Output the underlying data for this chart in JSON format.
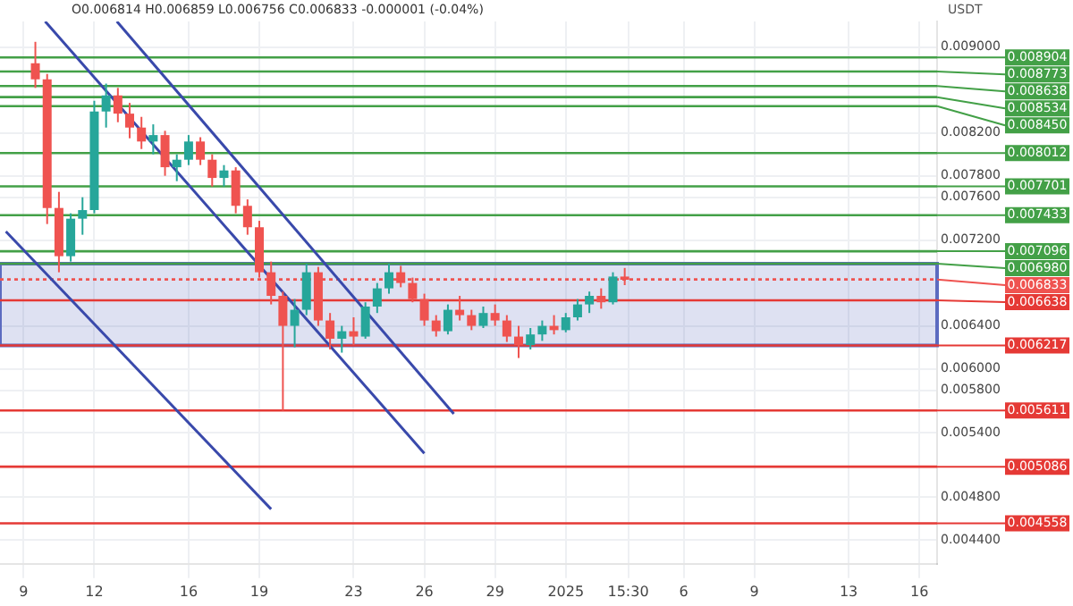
{
  "chart_data": {
    "type": "candlestick",
    "subtitle": "O0.006814 H0.006859 L0.006756 C0.006833 -0.000001 (-0.04%)",
    "ylabel": "USDT",
    "x": [
      "2024-12-09T12:00",
      "2024-12-10T00:00",
      "2024-12-10T12:00",
      "2024-12-11T00:00",
      "2024-12-11T12:00",
      "2024-12-12T00:00",
      "2024-12-12T12:00",
      "2024-12-13T00:00",
      "2024-12-13T12:00",
      "2024-12-14T00:00",
      "2024-12-14T12:00",
      "2024-12-15T00:00",
      "2024-12-15T12:00",
      "2024-12-16T00:00",
      "2024-12-16T12:00",
      "2024-12-17T00:00",
      "2024-12-17T12:00",
      "2024-12-18T00:00",
      "2024-12-18T12:00",
      "2024-12-19T00:00",
      "2024-12-19T12:00",
      "2024-12-20T00:00",
      "2024-12-20T12:00",
      "2024-12-21T00:00",
      "2024-12-21T12:00",
      "2024-12-22T00:00",
      "2024-12-22T12:00",
      "2024-12-23T00:00",
      "2024-12-23T12:00",
      "2024-12-24T00:00",
      "2024-12-24T12:00",
      "2024-12-25T00:00",
      "2024-12-25T12:00",
      "2024-12-26T00:00",
      "2024-12-26T12:00",
      "2024-12-27T00:00",
      "2024-12-27T12:00",
      "2024-12-28T00:00",
      "2024-12-28T12:00",
      "2024-12-29T00:00",
      "2024-12-29T12:00",
      "2024-12-30T00:00",
      "2024-12-30T12:00",
      "2024-12-31T00:00",
      "2024-12-31T12:00",
      "2025-01-01T00:00",
      "2025-01-01T12:00",
      "2025-01-02T00:00",
      "2025-01-02T12:00",
      "2025-01-03T00:00",
      "2025-01-03T12:00"
    ],
    "ohlc": [
      [
        0.00885,
        0.00905,
        0.00862,
        0.0087
      ],
      [
        0.0087,
        0.00875,
        0.00735,
        0.0075
      ],
      [
        0.0075,
        0.00765,
        0.0069,
        0.00705
      ],
      [
        0.00705,
        0.00745,
        0.007,
        0.0074
      ],
      [
        0.0074,
        0.0076,
        0.00725,
        0.00748
      ],
      [
        0.00748,
        0.0085,
        0.00745,
        0.0084
      ],
      [
        0.0084,
        0.00866,
        0.00825,
        0.00855
      ],
      [
        0.00855,
        0.00862,
        0.0083,
        0.00838
      ],
      [
        0.00838,
        0.00848,
        0.00815,
        0.00825
      ],
      [
        0.00825,
        0.00835,
        0.00805,
        0.00812
      ],
      [
        0.00812,
        0.00828,
        0.008,
        0.00818
      ],
      [
        0.00818,
        0.00822,
        0.0078,
        0.00788
      ],
      [
        0.00788,
        0.008,
        0.00775,
        0.00795
      ],
      [
        0.00795,
        0.00818,
        0.0079,
        0.00812
      ],
      [
        0.00812,
        0.00816,
        0.0079,
        0.00795
      ],
      [
        0.00795,
        0.008,
        0.0077,
        0.00778
      ],
      [
        0.00778,
        0.0079,
        0.0077,
        0.00785
      ],
      [
        0.00785,
        0.00788,
        0.00745,
        0.00752
      ],
      [
        0.00752,
        0.00758,
        0.00725,
        0.00732
      ],
      [
        0.00732,
        0.00738,
        0.00685,
        0.0069
      ],
      [
        0.0069,
        0.007,
        0.0066,
        0.00668
      ],
      [
        0.00668,
        0.00672,
        0.00561,
        0.0064
      ],
      [
        0.0064,
        0.00665,
        0.0062,
        0.00655
      ],
      [
        0.00655,
        0.00698,
        0.0065,
        0.0069
      ],
      [
        0.0069,
        0.00695,
        0.0064,
        0.00645
      ],
      [
        0.00645,
        0.00652,
        0.00618,
        0.00628
      ],
      [
        0.00628,
        0.0064,
        0.00615,
        0.00635
      ],
      [
        0.00635,
        0.00648,
        0.00622,
        0.0063
      ],
      [
        0.0063,
        0.00662,
        0.00628,
        0.00658
      ],
      [
        0.00658,
        0.0068,
        0.00652,
        0.00675
      ],
      [
        0.00675,
        0.00698,
        0.0067,
        0.0069
      ],
      [
        0.0069,
        0.00696,
        0.00676,
        0.0068
      ],
      [
        0.0068,
        0.00685,
        0.00662,
        0.00665
      ],
      [
        0.00665,
        0.0067,
        0.0064,
        0.00645
      ],
      [
        0.00645,
        0.0065,
        0.0063,
        0.00635
      ],
      [
        0.00635,
        0.0066,
        0.00632,
        0.00655
      ],
      [
        0.00655,
        0.00668,
        0.00645,
        0.0065
      ],
      [
        0.0065,
        0.00655,
        0.00636,
        0.0064
      ],
      [
        0.0064,
        0.00658,
        0.00638,
        0.00652
      ],
      [
        0.00652,
        0.0066,
        0.0064,
        0.00645
      ],
      [
        0.00645,
        0.0065,
        0.00625,
        0.0063
      ],
      [
        0.0063,
        0.0064,
        0.0061,
        0.00622
      ],
      [
        0.00622,
        0.00638,
        0.00618,
        0.00632
      ],
      [
        0.00632,
        0.00645,
        0.00626,
        0.0064
      ],
      [
        0.0064,
        0.0065,
        0.00632,
        0.00636
      ],
      [
        0.00636,
        0.00652,
        0.00634,
        0.00648
      ],
      [
        0.00648,
        0.00665,
        0.00645,
        0.0066
      ],
      [
        0.0066,
        0.00672,
        0.00652,
        0.00668
      ],
      [
        0.00668,
        0.00675,
        0.00656,
        0.00662
      ],
      [
        0.00662,
        0.0069,
        0.0066,
        0.00686
      ],
      [
        0.00686,
        0.00694,
        0.00678,
        0.00683
      ]
    ],
    "colors": [
      "#ef5350",
      "#ef5350",
      "#ef5350",
      "#26a69a",
      "#26a69a",
      "#26a69a",
      "#26a69a",
      "#ef5350",
      "#ef5350",
      "#ef5350",
      "#26a69a",
      "#ef5350",
      "#26a69a",
      "#26a69a",
      "#ef5350",
      "#ef5350",
      "#26a69a",
      "#ef5350",
      "#ef5350",
      "#ef5350",
      "#ef5350",
      "#ef5350",
      "#26a69a",
      "#26a69a",
      "#ef5350",
      "#ef5350",
      "#26a69a",
      "#ef5350",
      "#26a69a",
      "#26a69a",
      "#26a69a",
      "#ef5350",
      "#ef5350",
      "#ef5350",
      "#ef5350",
      "#26a69a",
      "#ef5350",
      "#ef5350",
      "#26a69a",
      "#ef5350",
      "#ef5350",
      "#ef5350",
      "#26a69a",
      "#26a69a",
      "#ef5350",
      "#26a69a",
      "#26a69a",
      "#26a69a",
      "#ef5350",
      "#26a69a",
      "#ef5350"
    ],
    "series": [
      {
        "type": "line",
        "color": "#3949ab",
        "x": [
          "2024-12-12T23:00",
          "2024-12-27T06:00"
        ],
        "values": [
          0.00924,
          0.00558
        ]
      },
      {
        "type": "line",
        "color": "#3949ab",
        "x": [
          "2024-12-09T22:00",
          "2024-12-26T00:00"
        ],
        "values": [
          0.00924,
          0.00521
        ]
      },
      {
        "type": "line",
        "color": "#3949ab",
        "x": [
          "2024-12-08T06:00",
          "2024-12-19T12:00"
        ],
        "values": [
          0.00728,
          0.00469
        ]
      }
    ],
    "xlim": [
      "2024-12-08T00:00",
      "2025-01-16T18:00"
    ],
    "xticks": [
      {
        "value": "2024-12-09",
        "label": "9"
      },
      {
        "value": "2024-12-12",
        "label": "12"
      },
      {
        "value": "2024-12-16",
        "label": "16"
      },
      {
        "value": "2024-12-19",
        "label": "19"
      },
      {
        "value": "2024-12-23",
        "label": "23"
      },
      {
        "value": "2024-12-26",
        "label": "26"
      },
      {
        "value": "2024-12-29",
        "label": "29"
      },
      {
        "value": "2025-01-01",
        "label": "2025"
      },
      {
        "value": "2025-01-03T15:30",
        "label": "15:30"
      },
      {
        "value": "2025-01-06",
        "label": "6"
      },
      {
        "value": "2025-01-09",
        "label": "9"
      },
      {
        "value": "2025-01-13",
        "label": "13"
      },
      {
        "value": "2025-01-16",
        "label": "16"
      }
    ],
    "ylim": [
      0.00418,
      0.00924
    ],
    "yticks": [
      {
        "value": 0.009,
        "label": "0.009000"
      },
      {
        "value": 0.0082,
        "label": "0.008200"
      },
      {
        "value": 0.0078,
        "label": "0.007800"
      },
      {
        "value": 0.0076,
        "label": "0.007600"
      },
      {
        "value": 0.0072,
        "label": "0.007200"
      },
      {
        "value": 0.0064,
        "label": "0.006400"
      },
      {
        "value": 0.006,
        "label": "0.006000"
      },
      {
        "value": 0.0058,
        "label": "0.005800"
      },
      {
        "value": 0.0054,
        "label": "0.005400"
      },
      {
        "value": 0.0048,
        "label": "0.004800"
      },
      {
        "value": 0.0044,
        "label": "0.004400"
      }
    ],
    "ref_lines": [
      {
        "axis": "y",
        "value": 0.008904,
        "label": "0.008904",
        "color": "#43a047"
      },
      {
        "axis": "y",
        "value": 0.008773,
        "label": "0.008773",
        "color": "#43a047"
      },
      {
        "axis": "y",
        "value": 0.008638,
        "label": "0.008638",
        "color": "#43a047"
      },
      {
        "axis": "y",
        "value": 0.008534,
        "label": "0.008534",
        "color": "#43a047"
      },
      {
        "axis": "y",
        "value": 0.00845,
        "label": "0.008450",
        "color": "#43a047"
      },
      {
        "axis": "y",
        "value": 0.008012,
        "label": "0.008012",
        "color": "#43a047"
      },
      {
        "axis": "y",
        "value": 0.007701,
        "label": "0.007701",
        "color": "#43a047"
      },
      {
        "axis": "y",
        "value": 0.007433,
        "label": "0.007433",
        "color": "#43a047"
      },
      {
        "axis": "y",
        "value": 0.007096,
        "label": "0.007096",
        "color": "#43a047"
      },
      {
        "axis": "y",
        "value": 0.00698,
        "label": "0.006980",
        "color": "#43a047"
      },
      {
        "axis": "y",
        "value": 0.006833,
        "label": "0.006833",
        "color": "#ef5350",
        "line_style": "dotted"
      },
      {
        "axis": "y",
        "value": 0.006638,
        "label": "0.006638",
        "color": "#e53935"
      },
      {
        "axis": "y",
        "value": 0.006217,
        "label": "0.006217",
        "color": "#e53935"
      },
      {
        "axis": "y",
        "value": 0.005611,
        "label": "0.005611",
        "color": "#e53935"
      },
      {
        "axis": "y",
        "value": 0.005086,
        "label": "0.005086",
        "color": "#e53935"
      },
      {
        "axis": "y",
        "value": 0.004558,
        "label": "0.004558",
        "color": "#e53935"
      }
    ],
    "bands": [
      {
        "axis": "y",
        "from": 0.006217,
        "to": 0.00698,
        "color": "#5c6bc0"
      }
    ],
    "grid": true,
    "legend": false
  }
}
